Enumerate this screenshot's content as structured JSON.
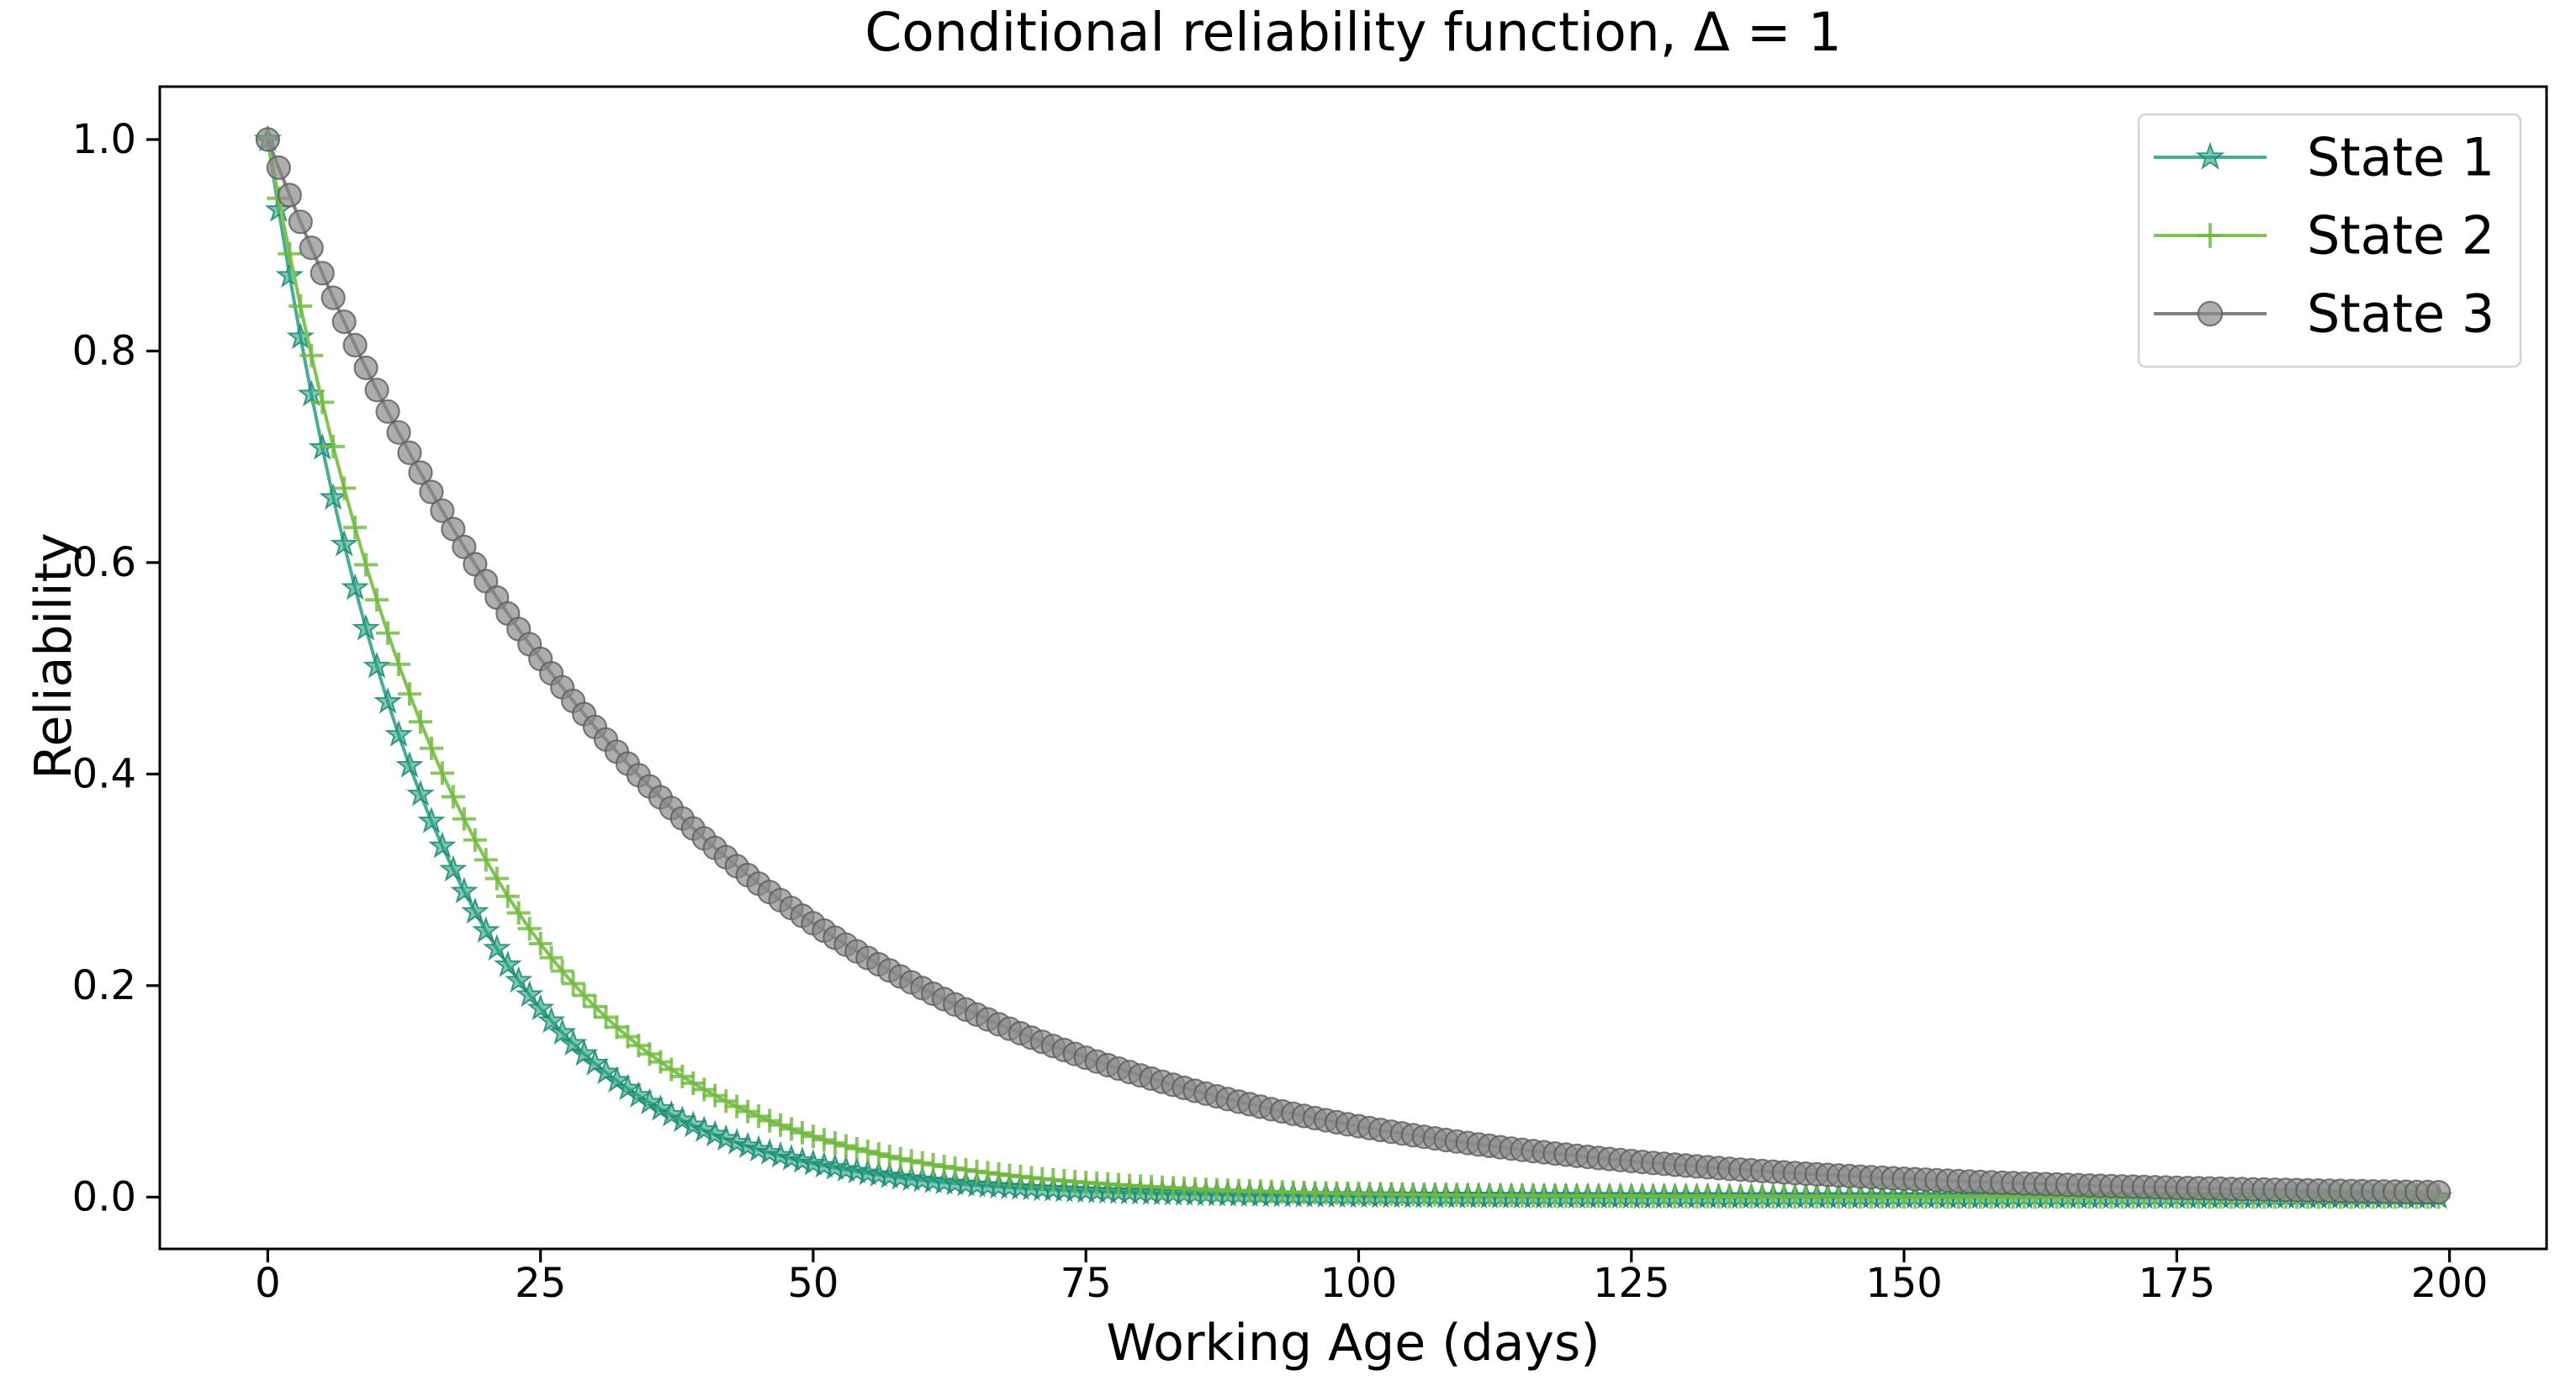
{
  "chart_data": {
    "type": "line",
    "title": "Conditional reliability function, Δ = 1",
    "xlabel": "Working Age (days)",
    "ylabel": "Reliability",
    "xlim": [
      -9.9,
      208.9
    ],
    "ylim": [
      -0.049,
      1.05
    ],
    "xticks": [
      0,
      25,
      50,
      75,
      100,
      125,
      150,
      175,
      200
    ],
    "xtick_labels": [
      "0",
      "25",
      "50",
      "75",
      "100",
      "125",
      "150",
      "175",
      "200"
    ],
    "yticks": [
      0.0,
      0.2,
      0.4,
      0.6,
      0.8,
      1.0
    ],
    "ytick_labels": [
      "0.0",
      "0.2",
      "0.4",
      "0.6",
      "0.8",
      "1.0"
    ],
    "grid": false,
    "legend_position": "upper right",
    "x_start": 0,
    "x_end": 199,
    "x_step": 1,
    "markevery": 1,
    "series": [
      {
        "name": "State 1",
        "marker": "star",
        "line_color": "#43b092",
        "marker_fill": "#2ba186",
        "marker_edge": "#1b8a70",
        "model": {
          "type": "exponential_decay",
          "formula": "R(t) = exp(-t/tau)",
          "tau": 14.5
        },
        "sample_x": [
          0,
          5,
          10,
          15,
          20,
          25,
          30,
          35,
          40,
          45,
          50,
          55,
          60,
          65,
          70,
          75,
          80,
          85,
          90,
          95,
          100,
          105,
          110,
          115,
          120,
          125,
          130,
          135,
          140,
          145,
          150,
          155,
          160,
          165,
          170,
          175,
          180,
          185,
          190,
          195,
          199
        ],
        "sample_y": [
          1.0,
          0.7083,
          0.5017,
          0.3554,
          0.2517,
          0.1783,
          0.1263,
          0.0894,
          0.0634,
          0.0449,
          0.0318,
          0.0225,
          0.0159,
          0.0113,
          0.008,
          0.0057,
          0.004,
          0.0028,
          0.002,
          0.0014,
          0.001,
          0.0007,
          0.0005,
          0.0004,
          0.0003,
          0.0002,
          0.0001,
          0.0001,
          0.0001,
          0.0,
          0.0,
          0.0,
          0.0,
          0.0,
          0.0,
          0.0,
          0.0,
          0.0,
          0.0,
          0.0,
          0.0
        ]
      },
      {
        "name": "State 2",
        "marker": "plus",
        "line_color": "#80c451",
        "marker_fill": "none",
        "marker_edge": "#6fb83d",
        "model": {
          "type": "exponential_decay",
          "formula": "R(t) = exp(-t/tau)",
          "tau": 17.5
        },
        "sample_x": [
          0,
          5,
          10,
          15,
          20,
          25,
          30,
          35,
          40,
          45,
          50,
          55,
          60,
          65,
          70,
          75,
          80,
          85,
          90,
          95,
          100,
          105,
          110,
          115,
          120,
          125,
          130,
          135,
          140,
          145,
          150,
          155,
          160,
          165,
          170,
          175,
          180,
          185,
          190,
          195,
          199
        ],
        "sample_y": [
          1.0,
          0.7515,
          0.5648,
          0.4244,
          0.3189,
          0.2397,
          0.1801,
          0.1354,
          0.1017,
          0.0765,
          0.0574,
          0.0432,
          0.0324,
          0.0244,
          0.0183,
          0.0138,
          0.0103,
          0.0078,
          0.0058,
          0.0044,
          0.0033,
          0.0025,
          0.0019,
          0.0014,
          0.0011,
          0.0008,
          0.0006,
          0.0004,
          0.0003,
          0.0003,
          0.0002,
          0.0001,
          0.0001,
          0.0001,
          0.0001,
          0.0,
          0.0,
          0.0,
          0.0,
          0.0,
          0.0
        ]
      },
      {
        "name": "State 3",
        "marker": "circle",
        "line_color": "#808080",
        "marker_fill": "#8a8a8a",
        "marker_edge": "#5c5c5c",
        "model": {
          "type": "exponential_decay",
          "formula": "R(t) = exp(-t/tau)",
          "tau": 37
        },
        "sample_x": [
          0,
          5,
          10,
          15,
          20,
          25,
          30,
          35,
          40,
          45,
          50,
          55,
          60,
          65,
          70,
          75,
          80,
          85,
          90,
          95,
          100,
          105,
          110,
          115,
          120,
          125,
          130,
          135,
          140,
          145,
          150,
          155,
          160,
          165,
          170,
          175,
          180,
          185,
          190,
          195,
          199
        ],
        "sample_y": [
          1.0,
          0.8736,
          0.7632,
          0.6668,
          0.5825,
          0.5089,
          0.4446,
          0.3884,
          0.3394,
          0.2965,
          0.259,
          0.2263,
          0.1977,
          0.1727,
          0.1509,
          0.1318,
          0.1152,
          0.1006,
          0.0879,
          0.0768,
          0.0671,
          0.0586,
          0.0512,
          0.0447,
          0.0391,
          0.0341,
          0.0298,
          0.026,
          0.0228,
          0.0199,
          0.0174,
          0.0152,
          0.0133,
          0.0116,
          0.0101,
          0.0088,
          0.0077,
          0.0068,
          0.0059,
          0.0052,
          0.0046
        ]
      }
    ]
  }
}
